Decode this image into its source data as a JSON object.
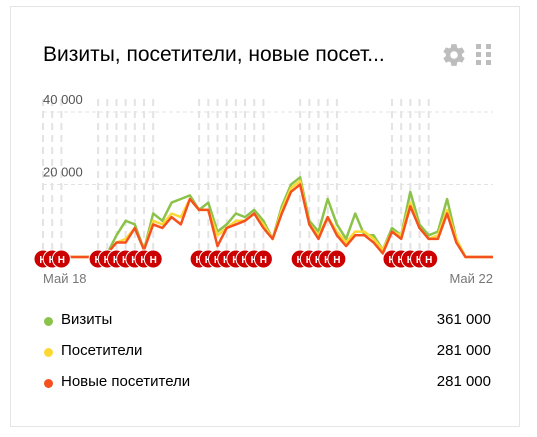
{
  "widget": {
    "title": "Визиты, посетители, новые посет...",
    "settings_icon": "gear-icon",
    "drag_icon": "drag-handle-icon"
  },
  "chart_data": {
    "type": "line",
    "x": [
      "Май 18",
      "",
      "",
      "",
      "",
      "",
      "",
      "",
      "",
      "",
      "",
      "",
      "",
      "",
      "",
      "",
      "",
      "",
      "",
      "",
      "",
      "",
      "",
      "",
      "",
      "",
      "",
      "",
      "",
      "",
      "",
      "",
      "",
      "",
      "",
      "",
      "",
      "",
      "",
      "",
      "",
      "",
      "",
      "",
      "",
      "",
      "",
      "",
      "",
      "Май 22"
    ],
    "x_tick_labels": [
      "Май 18",
      "Май 22"
    ],
    "y_tick_labels": [
      "20 000",
      "40 000"
    ],
    "ylim": [
      0,
      40000
    ],
    "grid": true,
    "marker_label": "Н",
    "marker_indices": [
      0,
      1,
      2,
      6,
      7,
      8,
      9,
      10,
      11,
      12,
      17,
      18,
      19,
      20,
      21,
      22,
      23,
      24,
      28,
      29,
      30,
      31,
      32,
      38,
      39,
      40,
      41,
      42
    ],
    "series": [
      {
        "name": "Визиты",
        "color": "#8bc34a",
        "values": [
          0,
          0,
          0,
          0,
          0,
          0,
          0,
          1000,
          6000,
          10000,
          9000,
          2000,
          12000,
          10000,
          15000,
          16000,
          17000,
          13000,
          15000,
          7000,
          9000,
          12000,
          11000,
          13000,
          10000,
          5000,
          14000,
          20000,
          22000,
          10000,
          7000,
          16000,
          9000,
          5000,
          12000,
          6000,
          6000,
          2000,
          8000,
          6000,
          18000,
          9000,
          6000,
          7000,
          16000,
          5000,
          0,
          0,
          0,
          0
        ]
      },
      {
        "name": "Посетители",
        "color": "#fdd835",
        "values": [
          0,
          0,
          0,
          0,
          0,
          0,
          0,
          1000,
          4000,
          5000,
          8000,
          2000,
          10000,
          9000,
          12000,
          11000,
          16000,
          13000,
          13000,
          6000,
          8000,
          10000,
          10000,
          12000,
          9000,
          5000,
          13000,
          19000,
          21000,
          9000,
          6000,
          11000,
          7000,
          4000,
          7000,
          7000,
          5000,
          2000,
          7000,
          6000,
          15000,
          8000,
          5000,
          6000,
          13000,
          5000,
          0,
          0,
          0,
          0
        ]
      },
      {
        "name": "Новые посетители",
        "color": "#f4511e",
        "values": [
          0,
          0,
          0,
          0,
          0,
          0,
          0,
          1000,
          4000,
          4000,
          8000,
          2000,
          9000,
          8000,
          11000,
          9000,
          16000,
          13000,
          13000,
          3000,
          8000,
          9000,
          10000,
          12000,
          8000,
          5000,
          12000,
          18000,
          20000,
          9000,
          5000,
          11000,
          6000,
          3000,
          6000,
          6000,
          4000,
          1000,
          7000,
          5000,
          14000,
          8000,
          5000,
          5000,
          12000,
          4000,
          0,
          0,
          0,
          0
        ]
      }
    ]
  },
  "legend": [
    {
      "label": "Визиты",
      "value": "361 000",
      "color": "#8bc34a"
    },
    {
      "label": "Посетители",
      "value": "281 000",
      "color": "#fdd835"
    },
    {
      "label": "Новые посетители",
      "value": "281 000",
      "color": "#f4511e"
    }
  ]
}
